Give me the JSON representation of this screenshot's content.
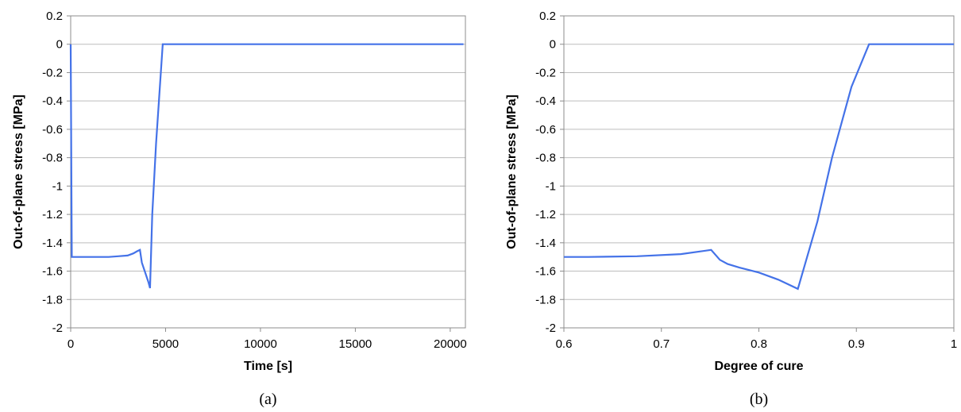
{
  "chart_data": [
    {
      "type": "line",
      "xlabel": "Time [s]",
      "ylabel": "Out-of-plane stress [MPa]",
      "caption": "(a)",
      "xlim": [
        0,
        20800
      ],
      "ylim": [
        -2,
        0.2
      ],
      "xticks": [
        0,
        5000,
        10000,
        15000,
        20000
      ],
      "yticks": [
        0.2,
        0,
        -0.2,
        -0.4,
        -0.6,
        -0.8,
        -1,
        -1.2,
        -1.4,
        -1.6,
        -1.8,
        -2
      ],
      "grid": true,
      "series": [
        {
          "color": "#4472e8",
          "x": [
            0,
            60,
            120,
            500,
            1000,
            1500,
            2000,
            2500,
            3000,
            3300,
            3500,
            3650,
            3750,
            3900,
            4100,
            4180,
            4300,
            4500,
            4700,
            4850,
            5000,
            10000,
            15000,
            20700
          ],
          "y": [
            0,
            -1.5,
            -1.5,
            -1.5,
            -1.5,
            -1.5,
            -1.5,
            -1.495,
            -1.49,
            -1.475,
            -1.46,
            -1.45,
            -1.54,
            -1.6,
            -1.68,
            -1.72,
            -1.2,
            -0.7,
            -0.3,
            0,
            0,
            0,
            0,
            0
          ]
        }
      ]
    },
    {
      "type": "line",
      "xlabel": "Degree of cure",
      "ylabel": "Out-of-plane stress [MPa]",
      "caption": "(b)",
      "xlim": [
        0.6,
        1
      ],
      "ylim": [
        -2,
        0.2
      ],
      "xticks": [
        0.6,
        0.7,
        0.8,
        0.9,
        1
      ],
      "yticks": [
        0.2,
        0,
        -0.2,
        -0.4,
        -0.6,
        -0.8,
        -1,
        -1.2,
        -1.4,
        -1.6,
        -1.8,
        -2
      ],
      "grid": true,
      "series": [
        {
          "color": "#4472e8",
          "x": [
            0.6,
            0.625,
            0.675,
            0.72,
            0.751,
            0.76,
            0.768,
            0.78,
            0.8,
            0.82,
            0.84,
            0.86,
            0.875,
            0.895,
            0.913,
            0.95,
            1.0
          ],
          "y": [
            -1.5,
            -1.5,
            -1.495,
            -1.48,
            -1.45,
            -1.52,
            -1.55,
            -1.575,
            -1.61,
            -1.66,
            -1.725,
            -1.25,
            -0.8,
            -0.3,
            0,
            0,
            0
          ]
        }
      ]
    }
  ]
}
